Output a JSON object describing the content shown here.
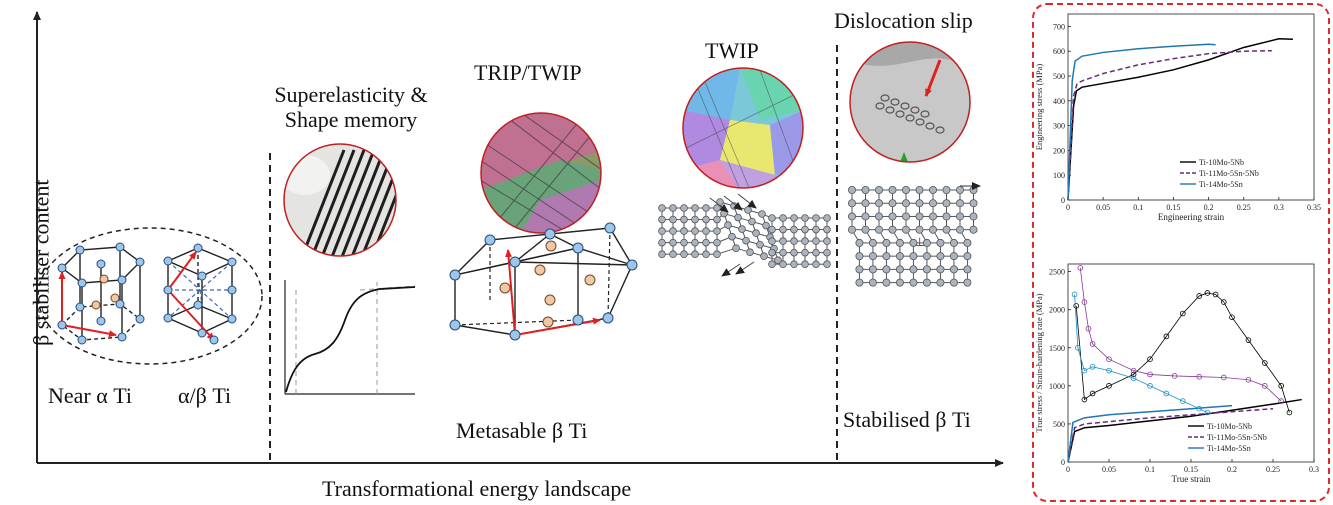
{
  "axes": {
    "y_title": "β stabiliser content",
    "x_title": "Transformational energy landscape"
  },
  "regions": {
    "near_alpha": "Near α Ti",
    "alpha_beta": "α/β Ti",
    "superelasticity": [
      "Superelasticity &",
      "Shape memory"
    ],
    "trip_twip": "TRIP/TWIP",
    "twip": "TWIP",
    "metastable": "Metasable β Ti",
    "dislocation": "Dislocation slip",
    "stabilised": "Stabilised β Ti"
  },
  "colors": {
    "inset_border": "#e02a2a",
    "series_1": "#000000",
    "series_2": "#6a2a7a",
    "series_3": "#1f77b4",
    "atom_blue": "#9cc7ea",
    "atom_orange": "#f2c8a4"
  },
  "chart_data": [
    {
      "type": "line",
      "xlabel": "Engineering strain",
      "ylabel": "Engineering stress (MPa)",
      "xlim": [
        0,
        0.35
      ],
      "ylim": [
        0,
        750
      ],
      "xticks": [
        "0",
        "0.05",
        "0.1",
        "0.15",
        "0.2",
        "0.25",
        "0.3",
        "0.35"
      ],
      "yticks": [
        "0",
        "100",
        "200",
        "300",
        "400",
        "500",
        "600",
        "700"
      ],
      "legend_position": "right",
      "series": [
        {
          "name": "Ti-10Mo-5Nb",
          "style": "solid",
          "color": "#000000",
          "x": [
            0,
            0.008,
            0.012,
            0.02,
            0.05,
            0.1,
            0.15,
            0.2,
            0.25,
            0.3,
            0.32
          ],
          "y": [
            0,
            380,
            440,
            455,
            470,
            495,
            525,
            565,
            615,
            650,
            648
          ]
        },
        {
          "name": "Ti-11Mo-5Sn-5Nb",
          "style": "dashed",
          "color": "#6a2a7a",
          "x": [
            0,
            0.008,
            0.013,
            0.02,
            0.05,
            0.1,
            0.15,
            0.2,
            0.25,
            0.29
          ],
          "y": [
            0,
            420,
            470,
            480,
            510,
            545,
            570,
            590,
            600,
            602
          ]
        },
        {
          "name": "Ti-14Mo-5Sn",
          "style": "solid",
          "color": "#1f77b4",
          "x": [
            0,
            0.006,
            0.01,
            0.02,
            0.05,
            0.1,
            0.15,
            0.2,
            0.21
          ],
          "y": [
            0,
            480,
            560,
            580,
            595,
            610,
            620,
            628,
            626
          ]
        }
      ]
    },
    {
      "type": "line",
      "xlabel": "True strain",
      "ylabel": "True stress / Strain-hardening rate (MPa)",
      "xlim": [
        0,
        0.3
      ],
      "ylim": [
        0,
        2600
      ],
      "xticks": [
        "0",
        "0.05",
        "0.1",
        "0.15",
        "0.2",
        "0.25",
        "0.3"
      ],
      "yticks": [
        "0",
        "500",
        "1000",
        "1500",
        "2000",
        "2500"
      ],
      "legend_position": "bottom-right",
      "series": [
        {
          "name": "Ti-10Mo-5Nb",
          "style": "solid",
          "color": "#000000",
          "x": [
            0,
            0.008,
            0.02,
            0.05,
            0.1,
            0.15,
            0.2,
            0.25,
            0.285
          ],
          "y": [
            0,
            400,
            450,
            480,
            540,
            600,
            680,
            760,
            820
          ]
        },
        {
          "name": "Ti-11Mo-5Sn-5Nb",
          "style": "dashed",
          "color": "#6a2a7a",
          "x": [
            0,
            0.008,
            0.02,
            0.05,
            0.1,
            0.15,
            0.2,
            0.25
          ],
          "y": [
            0,
            450,
            500,
            530,
            580,
            620,
            660,
            700
          ]
        },
        {
          "name": "Ti-14Mo-5Sn",
          "style": "solid",
          "color": "#1f77b4",
          "x": [
            0,
            0.006,
            0.02,
            0.05,
            0.1,
            0.15,
            0.2
          ],
          "y": [
            0,
            520,
            580,
            620,
            660,
            700,
            740
          ]
        },
        {
          "name": "",
          "style": "markers",
          "color": "#000000",
          "x": [
            0.01,
            0.02,
            0.03,
            0.05,
            0.08,
            0.1,
            0.12,
            0.14,
            0.16,
            0.17,
            0.18,
            0.19,
            0.2,
            0.22,
            0.24,
            0.26,
            0.27
          ],
          "y": [
            2050,
            820,
            900,
            1000,
            1150,
            1350,
            1650,
            1950,
            2180,
            2220,
            2200,
            2100,
            1900,
            1600,
            1300,
            1000,
            650
          ]
        },
        {
          "name": "",
          "style": "markers",
          "color": "#8a3a9a",
          "x": [
            0.015,
            0.02,
            0.025,
            0.03,
            0.05,
            0.08,
            0.1,
            0.13,
            0.16,
            0.19,
            0.22,
            0.24,
            0.26
          ],
          "y": [
            2550,
            2100,
            1750,
            1550,
            1350,
            1200,
            1150,
            1130,
            1120,
            1110,
            1080,
            1000,
            800
          ]
        },
        {
          "name": "",
          "style": "markers",
          "color": "#1f8fc4",
          "x": [
            0.008,
            0.012,
            0.02,
            0.03,
            0.05,
            0.08,
            0.1,
            0.12,
            0.14,
            0.16,
            0.17
          ],
          "y": [
            2200,
            1500,
            1200,
            1250,
            1200,
            1100,
            1000,
            900,
            800,
            700,
            650
          ]
        }
      ]
    }
  ]
}
